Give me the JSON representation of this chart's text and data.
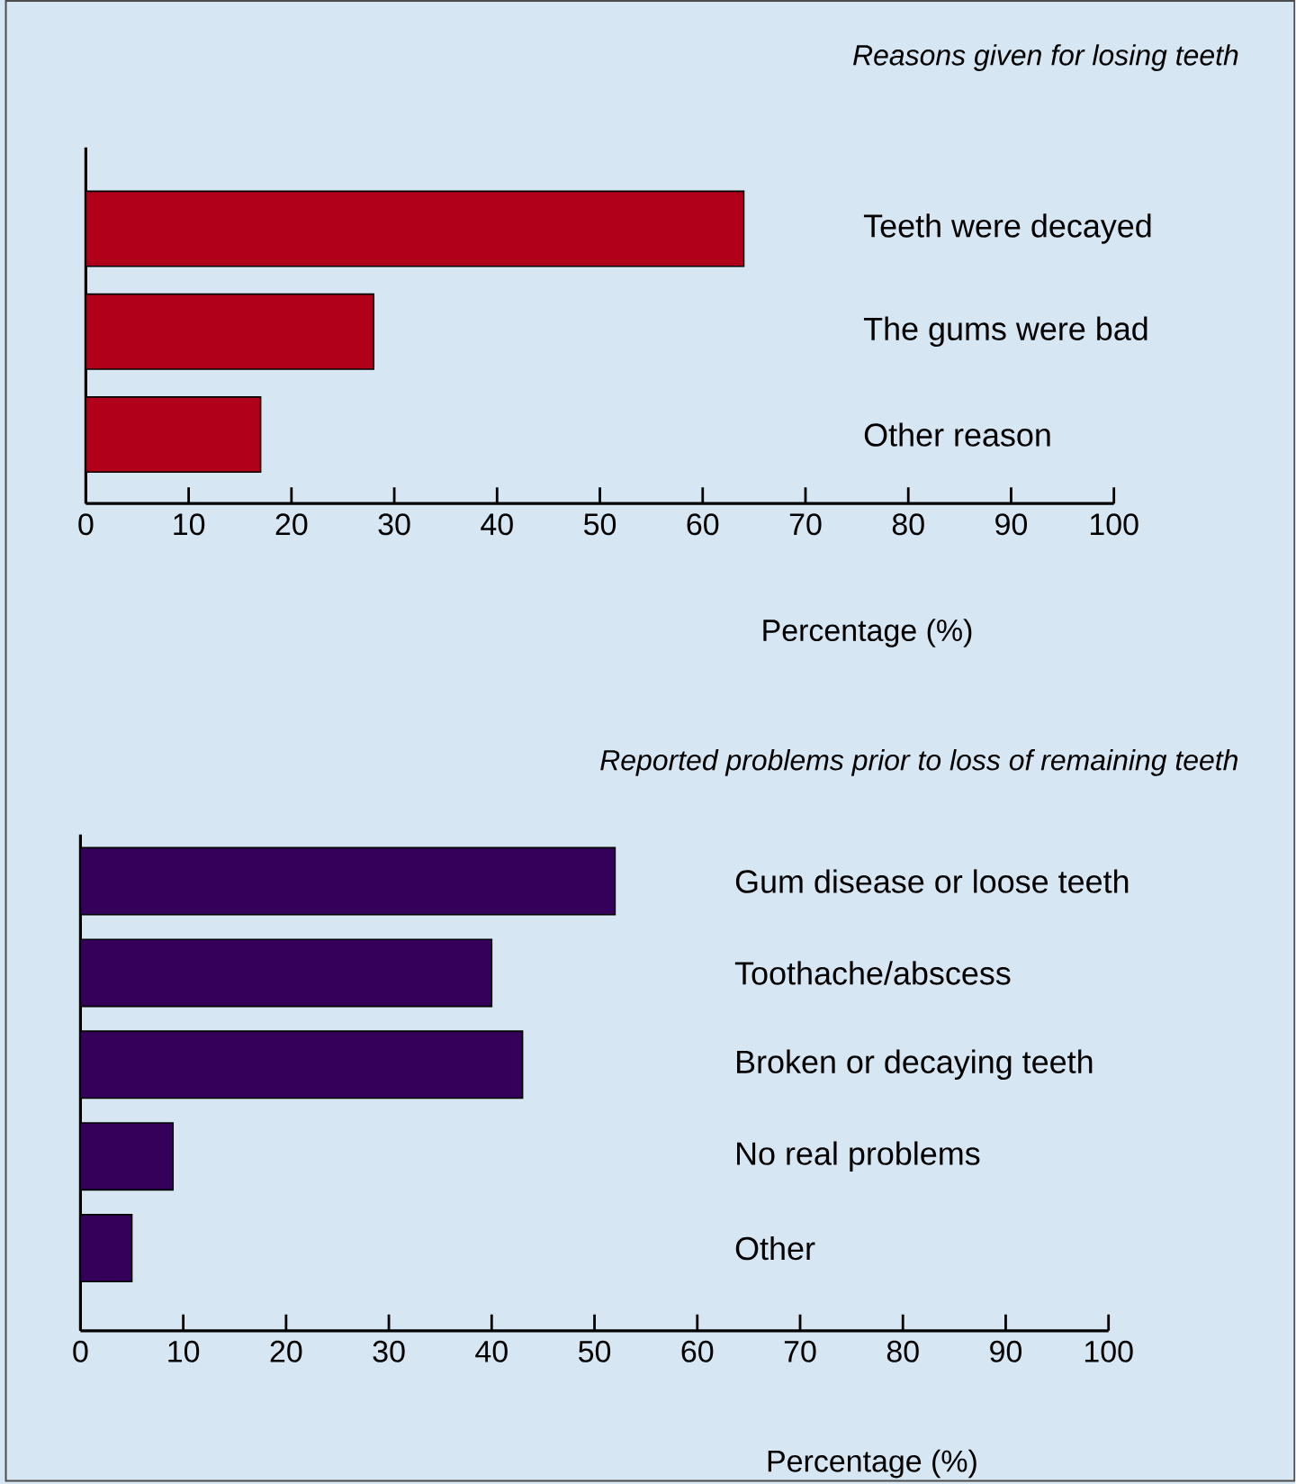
{
  "chart_data": [
    {
      "type": "bar",
      "orientation": "horizontal",
      "title": "Reasons given for losing teeth",
      "xlabel": "Percentage (%)",
      "categories": [
        "Teeth were decayed",
        "The gums were bad",
        "Other reason"
      ],
      "values": [
        64,
        28,
        17
      ],
      "color": "#b0001a",
      "xlim": [
        0,
        100
      ],
      "xticks": [
        0,
        10,
        20,
        30,
        40,
        50,
        60,
        70,
        80,
        90,
        100
      ]
    },
    {
      "type": "bar",
      "orientation": "horizontal",
      "title": "Reported problems prior to loss of remaining teeth",
      "xlabel": "Percentage (%)",
      "categories": [
        "Gum disease or loose teeth",
        "Toothache/abscess",
        "Broken or decaying teeth",
        "No real problems",
        "Other"
      ],
      "values": [
        52,
        40,
        43,
        9,
        5
      ],
      "color": "#35005a",
      "xlim": [
        0,
        100
      ],
      "xticks": [
        0,
        10,
        20,
        30,
        40,
        50,
        60,
        70,
        80,
        90,
        100
      ]
    }
  ]
}
